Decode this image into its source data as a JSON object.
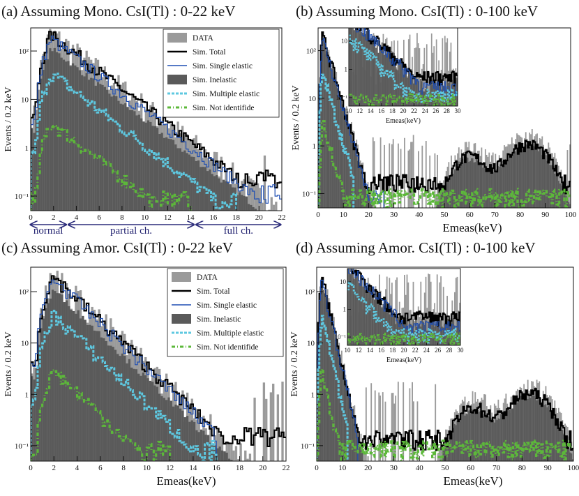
{
  "figure": {
    "colors": {
      "data": "#9a9a9a",
      "total": "#000000",
      "single_elastic": "#1f4fb4",
      "inelastic": "#5a5a5a",
      "multiple_elastic": "#5ec8e0",
      "not_identified": "#5cb83a",
      "region_arrows": "#2b2b7a"
    },
    "legend": [
      {
        "key": "data",
        "label": "DATA",
        "style": "box"
      },
      {
        "key": "total",
        "label": "Sim. Total",
        "style": "line"
      },
      {
        "key": "single_elastic",
        "label": "Sim. Single elastic",
        "style": "line"
      },
      {
        "key": "inelastic",
        "label": "Sim. Inelastic",
        "style": "box"
      },
      {
        "key": "multiple_elastic",
        "label": "Sim. Multiple elastic",
        "style": "dash"
      },
      {
        "key": "not_identified",
        "label": "Sim. Not identifide",
        "style": "dashdot"
      }
    ],
    "regions": [
      "normal",
      "partial ch.",
      "full ch."
    ]
  },
  "chart_data": [
    {
      "id": "a",
      "type": "histogram",
      "title": "(a) Assuming Mono. CsI(Tl) : 0-22 keV",
      "ylabel": "Events / 0.2 keV",
      "xlabel": "",
      "xlim": [
        0,
        22
      ],
      "ylim": [
        0.05,
        300
      ],
      "log_y": true,
      "xticks": [
        0,
        2,
        4,
        6,
        8,
        10,
        12,
        14,
        16,
        18,
        20,
        22
      ],
      "yticks": [
        {
          "v": 100,
          "t": "10²"
        },
        {
          "v": 10,
          "t": "10"
        },
        {
          "v": 1,
          "t": "1"
        },
        {
          "v": 0.1,
          "t": "10⁻¹"
        }
      ],
      "legend": true,
      "regions": [
        {
          "label": "normal",
          "from": 0,
          "to": 3.2
        },
        {
          "label": "partial ch.",
          "from": 3.2,
          "to": 14.4
        },
        {
          "label": "full ch.",
          "from": 14.4,
          "to": 22
        }
      ],
      "model": {
        "peak": 1.8,
        "height": 220,
        "tail_slope": 0.42,
        "bump": null
      },
      "series_ratio": {
        "total": 1.0,
        "single_elastic": 0.82,
        "inelastic": 0.52,
        "multiple_elastic": 0.16,
        "not_identified": 0.015,
        "data": 1.0
      },
      "series_floor": {
        "total": 0.14,
        "single_elastic": 0.07,
        "inelastic": 0,
        "multiple_elastic": 0.05,
        "not_identified": 0.05,
        "data": 0.05
      },
      "series_end": {
        "total": 22,
        "single_elastic": 22,
        "inelastic": 22,
        "multiple_elastic": 18,
        "not_identified": 14,
        "data": 22
      }
    },
    {
      "id": "b",
      "type": "histogram",
      "title": "(b) Assuming Mono. CsI(Tl) : 0-100 keV",
      "ylabel": "Events / 0.2 keV",
      "xlabel": "Emeas(keV)",
      "xlim": [
        0,
        100
      ],
      "ylim": [
        0.05,
        300
      ],
      "log_y": true,
      "xticks": [
        0,
        10,
        20,
        30,
        40,
        50,
        60,
        70,
        80,
        90,
        100
      ],
      "yticks": [
        {
          "v": 100,
          "t": "10²"
        },
        {
          "v": 10,
          "t": "10"
        },
        {
          "v": 1,
          "t": "1"
        },
        {
          "v": 0.1,
          "t": "10⁻¹"
        }
      ],
      "legend": false,
      "model": {
        "peak": 1.8,
        "height": 220,
        "tail_slope": 0.42,
        "bump": [
          {
            "c": 60,
            "w": 6,
            "h": 0.6
          },
          {
            "c": 83,
            "w": 7,
            "h": 1.1
          }
        ]
      },
      "series_ratio": {
        "total": 1.0,
        "single_elastic": 0.82,
        "inelastic": 0.9,
        "multiple_elastic": 0.16,
        "not_identified": 0.015,
        "data": 1.0
      },
      "series_floor": {
        "total": 0.1,
        "single_elastic": 0.05,
        "inelastic": 0,
        "multiple_elastic": 0.05,
        "not_identified": 0.05,
        "data": 0.05
      },
      "series_end": {
        "total": 100,
        "single_elastic": 26,
        "inelastic": 100,
        "multiple_elastic": 14,
        "not_identified": 100,
        "data": 100
      },
      "inset": {
        "xlim": [
          10,
          30
        ],
        "xticks": [
          10,
          12,
          14,
          16,
          18,
          20,
          22,
          24,
          26,
          28,
          30
        ],
        "xlabel": "Emeas(keV)",
        "ytick_labels": [
          "10",
          "1",
          "10⁻¹"
        ]
      }
    },
    {
      "id": "c",
      "type": "histogram",
      "title": "(c) Assuming Amor. CsI(Tl) : 0-22 keV",
      "ylabel": "Events / 0.2 keV",
      "xlabel": "Emeas(keV)",
      "xlim": [
        0,
        22
      ],
      "ylim": [
        0.05,
        300
      ],
      "log_y": true,
      "xticks": [
        0,
        2,
        4,
        6,
        8,
        10,
        12,
        14,
        16,
        18,
        20,
        22
      ],
      "yticks": [
        {
          "v": 100,
          "t": "10²"
        },
        {
          "v": 10,
          "t": "10"
        },
        {
          "v": 1,
          "t": "1"
        },
        {
          "v": 0.1,
          "t": "10⁻¹"
        }
      ],
      "legend": true,
      "model": {
        "peak": 2.0,
        "height": 200,
        "tail_slope": 0.5,
        "bump": null
      },
      "series_ratio": {
        "total": 1.0,
        "single_elastic": 0.9,
        "inelastic": 0.55,
        "multiple_elastic": 0.18,
        "not_identified": 0.015,
        "data": 1.0
      },
      "series_floor": {
        "total": 0.09,
        "single_elastic": 0.05,
        "inelastic": 0,
        "multiple_elastic": 0.05,
        "not_identified": 0.05,
        "data": 0.05
      },
      "series_end": {
        "total": 22,
        "single_elastic": 16,
        "inelastic": 22,
        "multiple_elastic": 16,
        "not_identified": 12,
        "data": 22
      }
    },
    {
      "id": "d",
      "type": "histogram",
      "title": "(d) Assuming Amor. CsI(Tl) : 0-100 keV",
      "ylabel": "Events / 0.2 keV",
      "xlabel": "Emeas(keV)",
      "xlim": [
        0,
        100
      ],
      "ylim": [
        0.05,
        300
      ],
      "log_y": true,
      "xticks": [
        0,
        10,
        20,
        30,
        40,
        50,
        60,
        70,
        80,
        90,
        100
      ],
      "yticks": [
        {
          "v": 100,
          "t": "10²"
        },
        {
          "v": 10,
          "t": "10"
        },
        {
          "v": 1,
          "t": "1"
        },
        {
          "v": 0.1,
          "t": "10⁻¹"
        }
      ],
      "legend": false,
      "model": {
        "peak": 2.0,
        "height": 200,
        "tail_slope": 0.5,
        "bump": [
          {
            "c": 61,
            "w": 6,
            "h": 0.55
          },
          {
            "c": 83,
            "w": 7,
            "h": 1.05
          }
        ]
      },
      "series_ratio": {
        "total": 1.0,
        "single_elastic": 0.9,
        "inelastic": 0.9,
        "multiple_elastic": 0.18,
        "not_identified": 0.015,
        "data": 1.0
      },
      "series_floor": {
        "total": 0.08,
        "single_elastic": 0.05,
        "inelastic": 0,
        "multiple_elastic": 0.05,
        "not_identified": 0.05,
        "data": 0.05
      },
      "series_end": {
        "total": 100,
        "single_elastic": 16,
        "inelastic": 100,
        "multiple_elastic": 12,
        "not_identified": 100,
        "data": 100
      },
      "inset": {
        "xlim": [
          10,
          30
        ],
        "xticks": [
          10,
          12,
          14,
          16,
          18,
          20,
          22,
          24,
          26,
          28,
          30
        ],
        "xlabel": "Emeas(keV)",
        "ytick_labels": [
          "10",
          "1",
          "10⁻¹"
        ]
      }
    }
  ]
}
